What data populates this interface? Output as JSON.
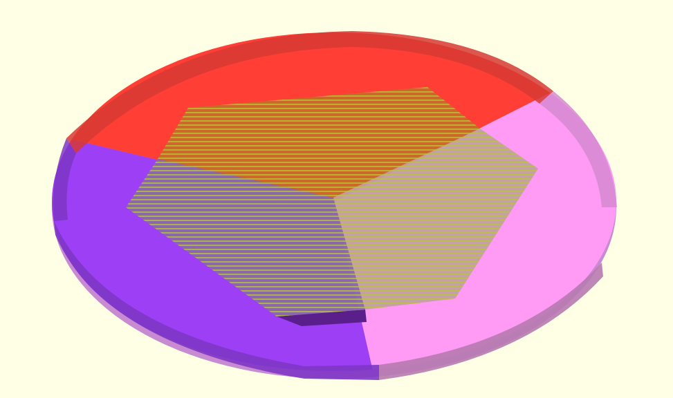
{
  "viewport": {
    "background": "#ffffe5"
  },
  "model": {
    "description_type": "3d-render",
    "disc_segments": [
      {
        "name": "red-segment",
        "color": "#ff3f36",
        "rim_color": "#d63a33"
      },
      {
        "name": "pink-segment",
        "color": "#ff9bf5",
        "rim_color": "#d68ad0"
      },
      {
        "name": "purple-segment",
        "color": "#9c3ff5",
        "rim_color": "#7e36c4"
      }
    ],
    "center_polygon": {
      "tint_colors": [
        "#c86a2a",
        "#8a69a8",
        "#c2a0a0"
      ],
      "hatch_color": "#b8c832"
    }
  }
}
